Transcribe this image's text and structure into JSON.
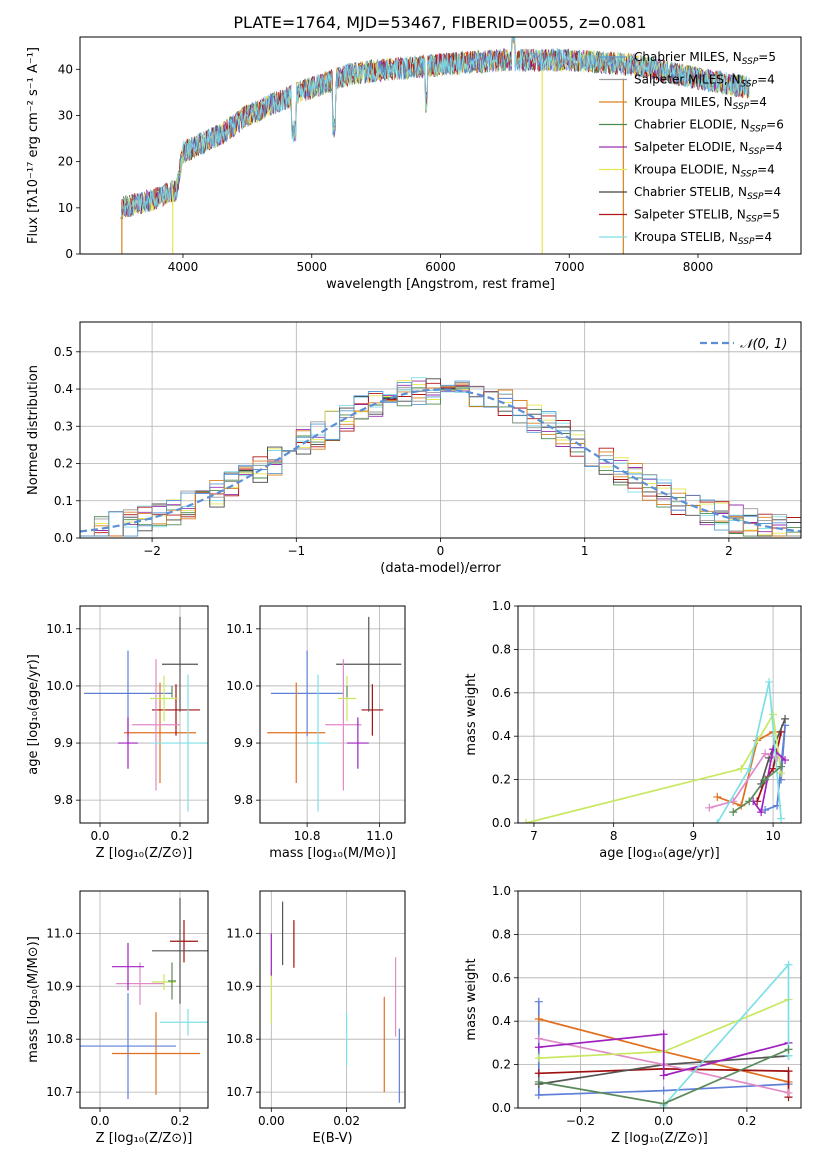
{
  "figure_title": "PLATE=1764, MJD=53467, FIBERID=0055, z=0.081",
  "colors": {
    "chabrier_miles": "#5b9bd5",
    "salpeter_miles": "#9b9b9b",
    "kroupa_miles": "#d98020",
    "chabrier_elodie": "#4e8a4e",
    "salpeter_elodie": "#9a30b0",
    "kroupa_elodie": "#e6e650",
    "chabrier_stelib": "#444444",
    "salpeter_stelib": "#b01818",
    "kroupa_stelib": "#80dce6",
    "normal": "#5b8fd6",
    "blue": "#6080d8",
    "orange": "#e07020",
    "pink": "#e08ac8",
    "purple": "#a020c0",
    "green": "#5a8a5a",
    "gray": "#555555",
    "darkred": "#a01010",
    "yellowgreen": "#c8e860",
    "cyan": "#7ee0e6"
  },
  "chart_data": [
    {
      "type": "line",
      "panel": "spectrum",
      "title": "PLATE=1764, MJD=53467, FIBERID=0055, z=0.081",
      "xlabel": "wavelength [Angstrom, rest frame]",
      "ylabel": "Flux [fλ10⁻¹⁷ erg cm⁻² s⁻¹ A⁻¹]",
      "xlim": [
        3200,
        8800
      ],
      "ylim": [
        0,
        47
      ],
      "xticks": [
        "4000",
        "5000",
        "6000",
        "7000",
        "8000"
      ],
      "yticks": [
        "0",
        "10",
        "20",
        "30",
        "40"
      ],
      "continuum": {
        "x": [
          3520,
          3800,
          3950,
          4000,
          4300,
          4500,
          4900,
          5100,
          5300,
          5600,
          6000,
          6500,
          7000,
          7500,
          8000,
          8400
        ],
        "y": [
          10,
          12,
          14,
          22,
          26,
          30,
          35,
          37,
          39,
          40,
          41,
          42,
          42,
          41,
          38,
          36
        ]
      },
      "legend": [
        {
          "label": "Chabrier MILES, N",
          "sub": "SSP",
          "eq": "=5",
          "color": "chabrier_miles"
        },
        {
          "label": "Salpeter MILES, N",
          "sub": "SSP",
          "eq": "=4",
          "color": "salpeter_miles"
        },
        {
          "label": "Kroupa MILES, N",
          "sub": "SSP",
          "eq": "=4",
          "color": "kroupa_miles"
        },
        {
          "label": "Chabrier ELODIE, N",
          "sub": "SSP",
          "eq": "=6",
          "color": "chabrier_elodie"
        },
        {
          "label": "Salpeter ELODIE, N",
          "sub": "SSP",
          "eq": "=4",
          "color": "salpeter_elodie"
        },
        {
          "label": "Kroupa ELODIE, N",
          "sub": "SSP",
          "eq": "=4",
          "color": "kroupa_elodie"
        },
        {
          "label": "Chabrier STELIB, N",
          "sub": "SSP",
          "eq": "=4",
          "color": "chabrier_stelib"
        },
        {
          "label": "Salpeter STELIB, N",
          "sub": "SSP",
          "eq": "=5",
          "color": "salpeter_stelib"
        },
        {
          "label": "Kroupa STELIB, N",
          "sub": "SSP",
          "eq": "=4",
          "color": "kroupa_stelib"
        }
      ],
      "legend_loc": "right"
    },
    {
      "type": "histogram",
      "panel": "residuals",
      "xlabel": "(data-model)/error",
      "ylabel": "Normed distribution",
      "xlim": [
        -2.5,
        2.5
      ],
      "ylim": [
        0,
        0.58
      ],
      "xticks": [
        "−2",
        "−1",
        "0",
        "1",
        "2"
      ],
      "yticks": [
        "0.0",
        "0.1",
        "0.2",
        "0.3",
        "0.4",
        "0.5"
      ],
      "bin_width": 0.1,
      "grid": true,
      "legend": "𝒩(0, 1)",
      "legend_loc": "top-right"
    },
    {
      "type": "errorbar",
      "panel": "age_vs_Z",
      "xlabel": "Z [log₁₀(Z/Z⊙)]",
      "ylabel": "age  [log₁₀(age/yr)]",
      "xlim": [
        -0.05,
        0.27
      ],
      "ylim": [
        9.76,
        10.14
      ],
      "xticks": [
        "0.0",
        "0.2"
      ],
      "yticks": [
        "9.8",
        "9.9",
        "10.0",
        "10.1"
      ],
      "points": [
        {
          "x": 0.07,
          "xe": 0.11,
          "y": 9.987,
          "ye": 0.075,
          "color": "blue"
        },
        {
          "x": 0.15,
          "xe": 0.09,
          "y": 9.918,
          "ye": 0.088,
          "color": "orange"
        },
        {
          "x": 0.19,
          "xe": 0.06,
          "y": 9.958,
          "ye": 0.045,
          "color": "darkred"
        },
        {
          "x": 0.2,
          "xe": 0.045,
          "y": 10.038,
          "ye": 0.083,
          "color": "gray"
        },
        {
          "x": 0.14,
          "xe": 0.06,
          "y": 9.932,
          "ye": 0.115,
          "color": "pink"
        },
        {
          "x": 0.16,
          "xe": 0.035,
          "y": 9.978,
          "ye": 0.04,
          "color": "yellowgreen"
        },
        {
          "x": 0.07,
          "xe": 0.025,
          "y": 9.9,
          "ye": 0.045,
          "color": "purple"
        },
        {
          "x": 0.22,
          "xe": 0.09,
          "y": 9.9,
          "ye": 0.12,
          "color": "cyan"
        },
        {
          "x": 0.18,
          "xe": 0.0,
          "y": 9.99,
          "ye": 0.01,
          "color": "green"
        }
      ]
    },
    {
      "type": "errorbar",
      "panel": "age_vs_mass",
      "xlabel": "mass [log₁₀(M/M⊙)]",
      "xlim": [
        10.67,
        11.07
      ],
      "ylim": [
        9.76,
        10.14
      ],
      "xticks": [
        "10.8",
        "11.0"
      ],
      "yticks": [
        "9.8",
        "9.9",
        "10.0",
        "10.1"
      ],
      "points": [
        {
          "x": 10.8,
          "xe": 0.1,
          "y": 9.987,
          "ye": 0.075,
          "color": "blue"
        },
        {
          "x": 10.77,
          "xe": 0.08,
          "y": 9.918,
          "ye": 0.088,
          "color": "orange"
        },
        {
          "x": 10.98,
          "xe": 0.03,
          "y": 9.958,
          "ye": 0.045,
          "color": "darkred"
        },
        {
          "x": 10.97,
          "xe": 0.09,
          "y": 10.038,
          "ye": 0.083,
          "color": "gray"
        },
        {
          "x": 10.9,
          "xe": 0.05,
          "y": 9.932,
          "ye": 0.115,
          "color": "pink"
        },
        {
          "x": 10.91,
          "xe": 0.025,
          "y": 9.978,
          "ye": 0.04,
          "color": "yellowgreen"
        },
        {
          "x": 10.94,
          "xe": 0.03,
          "y": 9.9,
          "ye": 0.045,
          "color": "purple"
        },
        {
          "x": 10.83,
          "xe": 0.03,
          "y": 9.9,
          "ye": 0.12,
          "color": "cyan"
        },
        {
          "x": 10.91,
          "xe": 0.0,
          "y": 9.99,
          "ye": 0.01,
          "color": "green"
        }
      ]
    },
    {
      "type": "line",
      "panel": "mass_weight_vs_age",
      "xlabel": "age  [log₁₀(age/yr)]",
      "ylabel": "mass weight",
      "xlim": [
        6.8,
        10.35
      ],
      "ylim": [
        0,
        1
      ],
      "xticks": [
        "7",
        "8",
        "9",
        "10"
      ],
      "yticks": [
        "0.0",
        "0.2",
        "0.4",
        "0.6",
        "0.8",
        "1.0"
      ],
      "series": [
        {
          "color": "blue",
          "x": [
            9.9,
            10.05,
            10.15,
            10.1
          ],
          "y": [
            0.06,
            0.08,
            0.45,
            0.2
          ]
        },
        {
          "color": "orange",
          "x": [
            9.3,
            9.6,
            9.8,
            10.0
          ],
          "y": [
            0.12,
            0.08,
            0.38,
            0.42
          ]
        },
        {
          "color": "darkred",
          "x": [
            9.8,
            9.9,
            10.0,
            10.1
          ],
          "y": [
            0.1,
            0.2,
            0.25,
            0.42
          ]
        },
        {
          "color": "gray",
          "x": [
            9.85,
            9.95,
            10.15
          ],
          "y": [
            0.18,
            0.3,
            0.48
          ]
        },
        {
          "color": "pink",
          "x": [
            9.2,
            9.5,
            9.9,
            10.05
          ],
          "y": [
            0.07,
            0.1,
            0.32,
            0.3
          ]
        },
        {
          "color": "yellowgreen",
          "x": [
            6.9,
            9.6,
            10.0,
            10.1
          ],
          "y": [
            0.0,
            0.25,
            0.5,
            0.23
          ]
        },
        {
          "color": "purple",
          "x": [
            9.75,
            9.85,
            10.0,
            10.15
          ],
          "y": [
            0.1,
            0.05,
            0.34,
            0.29
          ]
        },
        {
          "color": "cyan",
          "x": [
            9.3,
            9.7,
            9.95,
            10.1
          ],
          "y": [
            0.0,
            0.25,
            0.65,
            0.02
          ]
        },
        {
          "color": "green",
          "x": [
            9.5,
            9.7,
            9.9,
            10.1
          ],
          "y": [
            0.05,
            0.1,
            0.2,
            0.26
          ]
        }
      ]
    },
    {
      "type": "errorbar",
      "panel": "mass_vs_Z",
      "xlabel": "Z [log₁₀(Z/Z⊙)]",
      "ylabel": "mass [log₁₀(M/M⊙)]",
      "xlim": [
        -0.05,
        0.27
      ],
      "ylim": [
        10.67,
        11.08
      ],
      "xticks": [
        "0.0",
        "0.2"
      ],
      "yticks": [
        "10.7",
        "10.8",
        "10.9",
        "11.0"
      ],
      "points": [
        {
          "x": 0.07,
          "xe": 0.12,
          "y": 10.787,
          "ye": 0.1,
          "color": "blue"
        },
        {
          "x": 0.14,
          "xe": 0.11,
          "y": 10.773,
          "ye": 0.078,
          "color": "orange"
        },
        {
          "x": 0.21,
          "xe": 0.035,
          "y": 10.985,
          "ye": 0.04,
          "color": "darkred"
        },
        {
          "x": 0.2,
          "xe": 0.07,
          "y": 10.967,
          "ye": 0.1,
          "color": "gray"
        },
        {
          "x": 0.1,
          "xe": 0.06,
          "y": 10.905,
          "ye": 0.04,
          "color": "pink"
        },
        {
          "x": 0.16,
          "xe": 0.03,
          "y": 10.908,
          "ye": 0.015,
          "color": "yellowgreen"
        },
        {
          "x": 0.07,
          "xe": 0.04,
          "y": 10.937,
          "ye": 0.045,
          "color": "purple"
        },
        {
          "x": 0.22,
          "xe": 0.07,
          "y": 10.832,
          "ye": 0.025,
          "color": "cyan"
        },
        {
          "x": 0.18,
          "xe": 0.01,
          "y": 10.91,
          "ye": 0.035,
          "color": "green"
        }
      ]
    },
    {
      "type": "errorbar",
      "panel": "mass_vs_ebv",
      "xlabel": "E(B-V)",
      "xlim": [
        -0.003,
        0.0355
      ],
      "ylim": [
        10.67,
        11.08
      ],
      "xticks": [
        "0.00",
        "0.02"
      ],
      "yticks": [
        "10.7",
        "10.8",
        "10.9",
        "11.0"
      ],
      "points": [
        {
          "x": 0.034,
          "xe": 0,
          "y": 10.75,
          "ye": 0.07,
          "color": "blue"
        },
        {
          "x": 0.03,
          "xe": 0,
          "y": 10.79,
          "ye": 0.09,
          "color": "orange"
        },
        {
          "x": 0.006,
          "xe": 0,
          "y": 10.98,
          "ye": 0.045,
          "color": "darkred"
        },
        {
          "x": 0.003,
          "xe": 0,
          "y": 11.0,
          "ye": 0.06,
          "color": "gray"
        },
        {
          "x": 0.033,
          "xe": 0,
          "y": 10.88,
          "ye": 0.075,
          "color": "pink"
        },
        {
          "x": 0.0,
          "xe": 0,
          "y": 10.88,
          "ye": 0.05,
          "color": "yellowgreen"
        },
        {
          "x": 0.0,
          "xe": 0,
          "y": 10.96,
          "ye": 0.04,
          "color": "purple"
        },
        {
          "x": 0.02,
          "xe": 0,
          "y": 10.8,
          "ye": 0.05,
          "color": "cyan"
        }
      ]
    },
    {
      "type": "line",
      "panel": "mass_weight_vs_Z",
      "xlabel": "Z [log₁₀(Z/Z⊙)]",
      "ylabel": "mass weight",
      "xlim": [
        -0.35,
        0.33
      ],
      "ylim": [
        0,
        1
      ],
      "xticks": [
        "−0.2",
        "0.0",
        "0.2"
      ],
      "yticks": [
        "0.0",
        "0.2",
        "0.4",
        "0.6",
        "0.8",
        "1.0"
      ],
      "series": [
        {
          "color": "blue",
          "x": [
            -0.3,
            -0.3,
            0.0,
            0.3
          ],
          "y": [
            0.49,
            0.06,
            0.08,
            0.11
          ]
        },
        {
          "color": "orange",
          "x": [
            -0.3,
            0.0,
            0.3
          ],
          "y": [
            0.41,
            0.26,
            0.12
          ]
        },
        {
          "color": "darkred",
          "x": [
            -0.3,
            0.0,
            0.3,
            0.3
          ],
          "y": [
            0.16,
            0.18,
            0.17,
            0.05
          ]
        },
        {
          "color": "gray",
          "x": [
            -0.3,
            0.0,
            0.3
          ],
          "y": [
            0.11,
            0.2,
            0.24
          ]
        },
        {
          "color": "pink",
          "x": [
            -0.3,
            0.0,
            0.3
          ],
          "y": [
            0.32,
            0.2,
            0.07
          ]
        },
        {
          "color": "yellowgreen",
          "x": [
            -0.3,
            0.0,
            0.3
          ],
          "y": [
            0.23,
            0.26,
            0.5
          ]
        },
        {
          "color": "purple",
          "x": [
            -0.3,
            0.0,
            0.0,
            0.3
          ],
          "y": [
            0.28,
            0.34,
            0.15,
            0.3
          ]
        },
        {
          "color": "cyan",
          "x": [
            0.0,
            0.3,
            0.3
          ],
          "y": [
            0.01,
            0.66,
            0.24
          ]
        },
        {
          "color": "green",
          "x": [
            -0.3,
            0.0,
            0.3
          ],
          "y": [
            0.12,
            0.02,
            0.27
          ]
        }
      ]
    }
  ]
}
